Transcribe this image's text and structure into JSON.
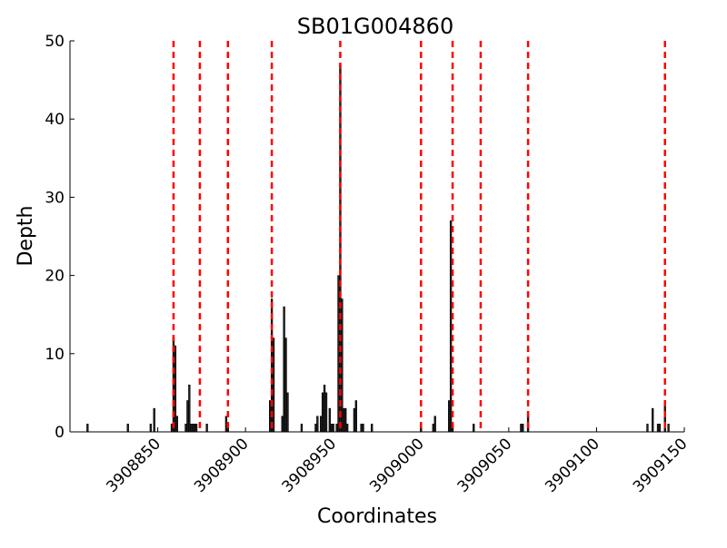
{
  "chart_data": {
    "type": "bar",
    "title": "SB01G004860",
    "x_label": "Coordinates",
    "y_label": "Depth",
    "x": [
      3908810,
      3908833,
      3908846,
      3908848,
      3908858,
      3908859,
      3908860,
      3908861,
      3908866,
      3908867,
      3908868,
      3908869,
      3908870,
      3908871,
      3908872,
      3908878,
      3908889,
      3908890,
      3908914,
      3908915,
      3908916,
      3908921,
      3908922,
      3908923,
      3908924,
      3908932,
      3908940,
      3908941,
      3908943,
      3908944,
      3908945,
      3908946,
      3908948,
      3908949,
      3908950,
      3908952,
      3908953,
      3908954,
      3908955,
      3908956,
      3908957,
      3908958,
      3908962,
      3908963,
      3908966,
      3908967,
      3908972,
      3909000,
      3909007,
      3909008,
      3909016,
      3909017,
      3909018,
      3909030,
      3909057,
      3909058,
      3909061,
      3909129,
      3909132,
      3909135,
      3909136,
      3909139,
      3909141
    ],
    "values": [
      1,
      1,
      1,
      3,
      1,
      12,
      11,
      2,
      1,
      4,
      6,
      1,
      1,
      1,
      1,
      1,
      2,
      1,
      4,
      17,
      12,
      2,
      16,
      12,
      5,
      1,
      1,
      2,
      2,
      5,
      6,
      5,
      3,
      1,
      1,
      1,
      20,
      47,
      17,
      3,
      3,
      1,
      3,
      4,
      1,
      1,
      1,
      1,
      1,
      2,
      4,
      27,
      1,
      1,
      1,
      1,
      2,
      1,
      3,
      1,
      1,
      4,
      1
    ],
    "color": "#222222",
    "vlines": [
      3908859,
      3908874,
      3908890,
      3908915,
      3908954,
      3909000,
      3909018,
      3909034,
      3909061,
      3909139
    ],
    "vline_color": "#ff0000",
    "xlim": [
      3908800,
      3909150
    ],
    "xticks": [
      3908850,
      3908900,
      3908950,
      3909000,
      3909050,
      3909100,
      3909150
    ],
    "ylim": [
      0,
      50
    ],
    "yticks": [
      0,
      10,
      20,
      30,
      40,
      50
    ]
  }
}
